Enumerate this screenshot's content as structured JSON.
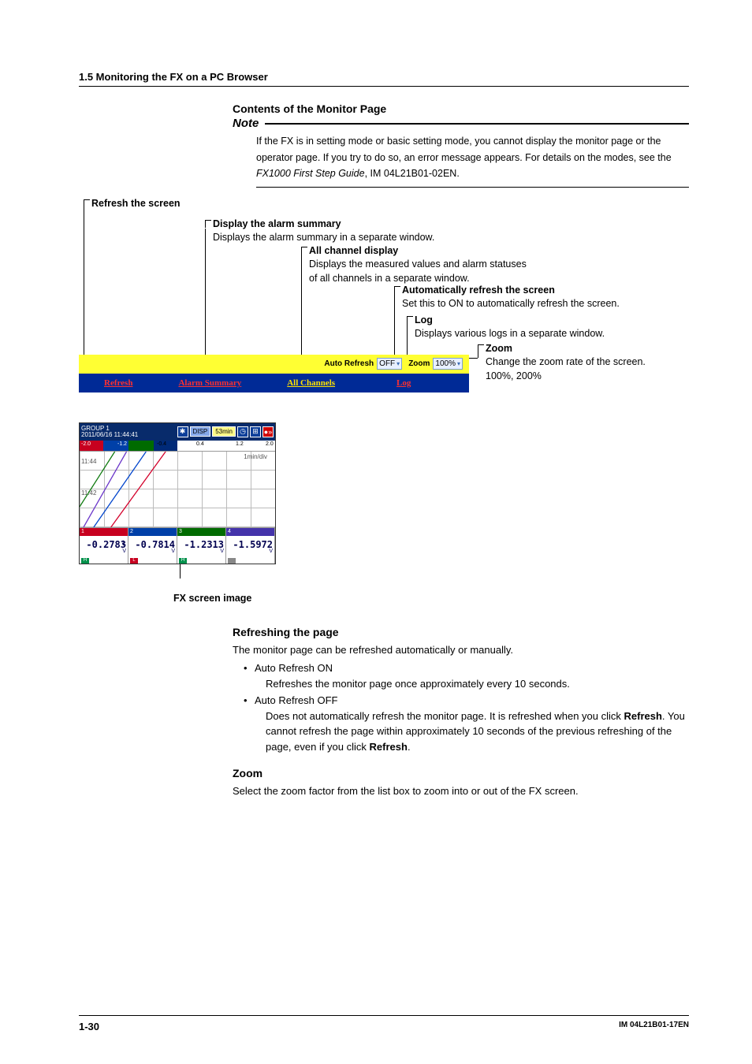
{
  "header": {
    "section": "1.5  Monitoring the FX on a PC Browser"
  },
  "contents_title": "Contents of the Monitor Page",
  "note": {
    "label": "Note",
    "body_pre": "If the FX is in setting mode or basic setting mode, you cannot display the monitor page or the operator page. If you try to do so, an error message appears. For details on the modes, see the ",
    "body_doc": "FX1000 First Step Guide",
    "body_post": ", IM 04L21B01-02EN."
  },
  "callouts": {
    "refresh_screen": {
      "title": "Refresh the screen"
    },
    "alarm_summary": {
      "title": "Display the alarm summary",
      "desc": "Displays the alarm summary in a separate window."
    },
    "all_channel": {
      "title": "All channel display",
      "desc1": "Displays the measured values and alarm statuses",
      "desc2": "of all channels in a separate window."
    },
    "auto_refresh": {
      "title": "Automatically refresh the screen",
      "desc": "Set this to ON to automatically refresh the screen."
    },
    "log": {
      "title": "Log",
      "desc": "Displays various logs in a separate window."
    },
    "zoom": {
      "title": "Zoom",
      "desc1": "Change the zoom rate of the screen.",
      "desc2": "100%, 200%"
    }
  },
  "toolbar": {
    "auto_refresh_label": "Auto Refresh",
    "auto_refresh_value": "OFF",
    "zoom_label": "Zoom",
    "zoom_value": "100%",
    "links": {
      "refresh": "Refresh",
      "alarm": "Alarm Summary",
      "all": "All Channels",
      "log": "Log"
    },
    "colors": {
      "top_bg": "#ffff33",
      "bottom_bg": "#002a96",
      "link_color": "#ff3030"
    }
  },
  "fx_image": {
    "caption": "FX screen image",
    "title_line1": "GROUP 1",
    "title_line2": "2011/06/16 11:44:41",
    "chip_disp": "DISP",
    "chip_time": "53min",
    "ruler_labels": [
      "-2.0",
      "-1.2",
      "-0.4",
      "0.4",
      "1.2",
      "2.0"
    ],
    "ylabels": [
      "11:44",
      "11:42"
    ],
    "mindiv": "1min/div",
    "channels": [
      {
        "n": "1",
        "hdr_color": "#c7001f",
        "tag_color": "#00904a",
        "tag": "H",
        "val": "-0.2783",
        "unit": "V",
        "extra": "L"
      },
      {
        "n": "2",
        "hdr_color": "#0040a8",
        "tag_color": "#c7001f",
        "tag": "L",
        "val": "-0.7814",
        "unit": "V",
        "extra": ""
      },
      {
        "n": "3",
        "hdr_color": "#006b00",
        "tag_color": "#00904a",
        "tag": "H",
        "val": "-1.2313",
        "unit": "V",
        "extra": ""
      },
      {
        "n": "4",
        "hdr_color": "#4433aa",
        "tag_color": "#888888",
        "tag": "",
        "val": "-1.5972",
        "unit": "V",
        "extra": ""
      }
    ],
    "trend_colors": [
      "#d3002a",
      "#0044cc",
      "#6a36c9",
      "#0e7a0e"
    ]
  },
  "refreshing": {
    "title": "Refreshing the page",
    "intro": "The monitor page can be refreshed automatically or manually.",
    "on_label": "Auto Refresh ON",
    "on_desc": "Refreshes the monitor page once approximately every 10 seconds.",
    "off_label": "Auto Refresh OFF",
    "off_desc_pre": "Does not automatically refresh the monitor page. It is refreshed when you click ",
    "off_desc_bold1": "Refresh",
    "off_desc_mid": ". You cannot refresh the page within approximately 10 seconds of the previous refreshing of the page, even if you click ",
    "off_desc_bold2": "Refresh",
    "off_desc_post": "."
  },
  "zoom_section": {
    "title": "Zoom",
    "desc": "Select the zoom factor from the list box to zoom into or out of the FX screen."
  },
  "footer": {
    "page": "1-30",
    "doc": "IM 04L21B01-17EN"
  }
}
